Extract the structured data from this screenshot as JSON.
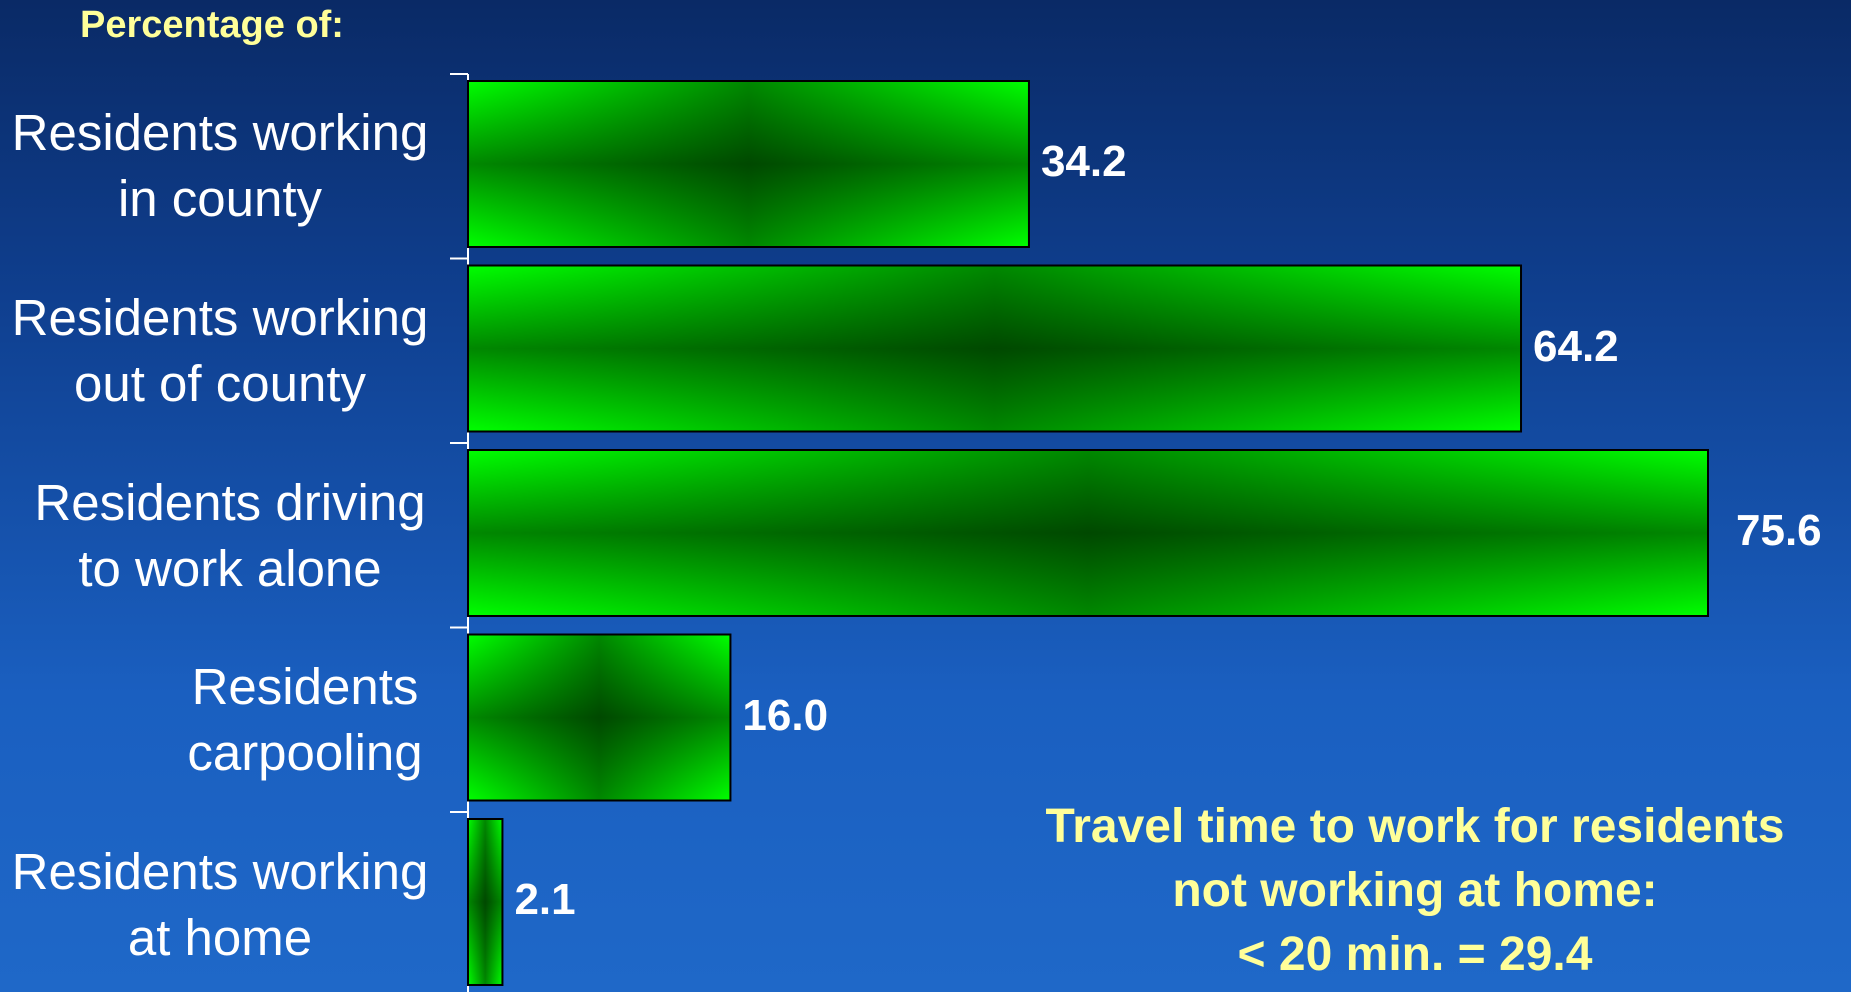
{
  "chart_data": {
    "type": "bar",
    "orientation": "horizontal",
    "title": "Percentage of:",
    "categories": [
      "Residents working\nin county",
      "Residents working\nout of county",
      "Residents driving\nto work alone",
      "Residents\ncarpooling",
      "Residents working\nat home"
    ],
    "values": [
      34.2,
      64.2,
      75.6,
      16.0,
      2.1
    ],
    "value_labels": [
      "34.2",
      "64.2",
      "75.6",
      "16.0",
      "2.1"
    ],
    "xlim": [
      0,
      75.6
    ],
    "grid": false,
    "legend": "none",
    "bar_color": "#00ff00",
    "annotation": "Travel time to work for residents\nnot working at home:\n< 20 min. = 29.4"
  },
  "colors": {
    "title": "#ffff99",
    "text": "#ffffff",
    "bar": "#00ff00",
    "bar_shadow": "#000000",
    "axis": "#ffffff"
  }
}
